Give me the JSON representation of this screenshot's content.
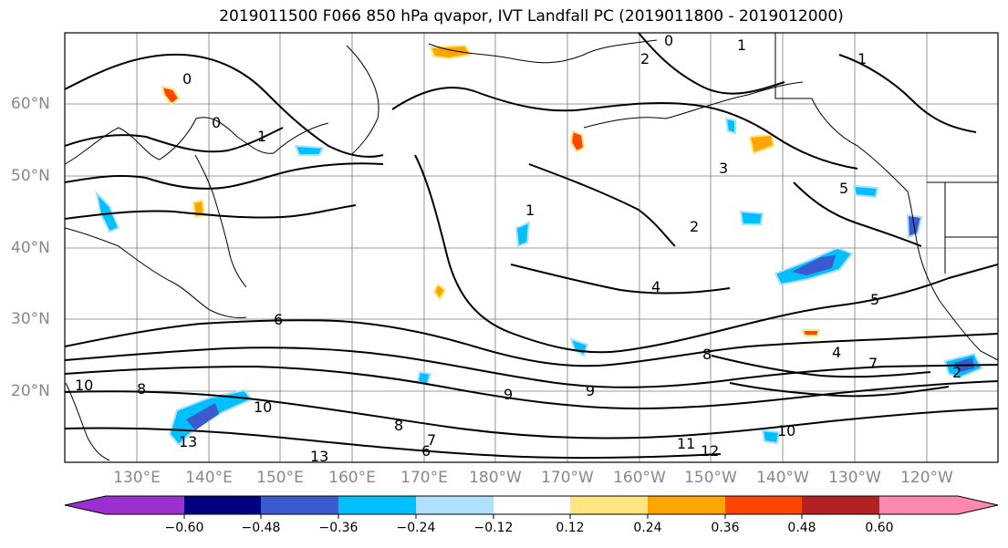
{
  "title": "2019011500 F066 850 hPa qvapor, IVT Landfall PC (2019011800 - 2019012000)",
  "lat_labels": [
    "60°N",
    "50°N",
    "40°N",
    "30°N",
    "20°N"
  ],
  "lon_labels": [
    "130°E",
    "140°E",
    "150°E",
    "160°E",
    "170°E",
    "180°W",
    "170°W",
    "160°W",
    "150°W",
    "140°W",
    "130°W",
    "120°W"
  ],
  "colorbar": {
    "colors": [
      "#9b30d0",
      "#000080",
      "#3a5bd0",
      "#00bfff",
      "#b0e0ff",
      "#ffffff",
      "#ffe680",
      "#ffa500",
      "#ff4500",
      "#b22222",
      "#ff88b0"
    ],
    "tick_labels": [
      "−0.60",
      "−0.48",
      "−0.36",
      "−0.24",
      "−0.12",
      "0.12",
      "0.24",
      "0.36",
      "0.48",
      "0.60"
    ]
  },
  "contour_labels": [
    "0",
    "1",
    "0",
    "1",
    "2",
    "1",
    "0",
    "3",
    "5",
    "1",
    "2",
    "4",
    "5",
    "6",
    "8",
    "9",
    "7",
    "10",
    "8",
    "10",
    "13",
    "11",
    "12",
    "13",
    "8",
    "9",
    "10",
    "6",
    "7",
    "2",
    "4"
  ],
  "colors": {
    "contour": "#000000",
    "coast": "#000000",
    "grid": "#7a7a7a",
    "frame": "#000000"
  }
}
